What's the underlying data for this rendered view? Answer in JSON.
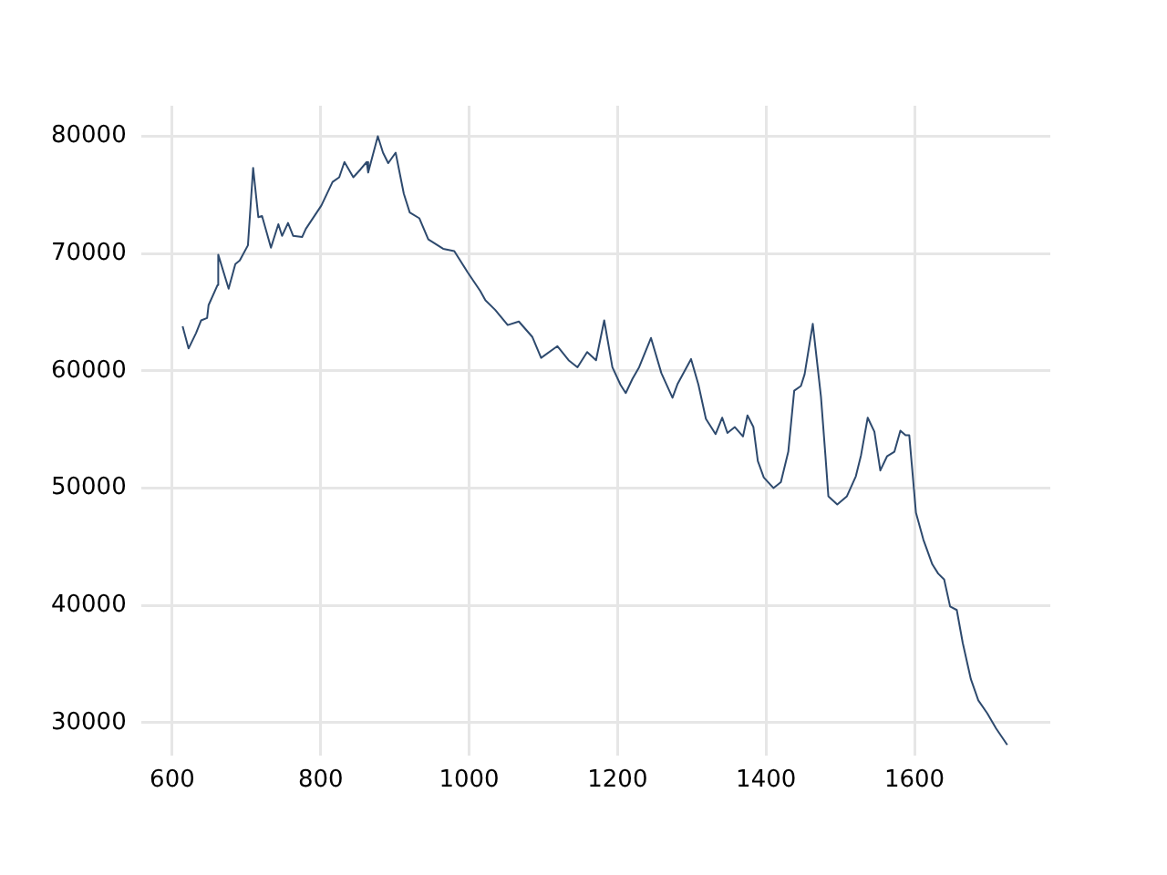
{
  "chart_data": {
    "type": "line",
    "x": [
      614,
      622,
      632,
      639,
      647,
      649,
      661,
      662,
      676,
      685,
      691,
      702,
      709,
      716,
      721,
      733,
      743,
      748,
      756,
      763,
      775,
      780,
      801,
      816,
      825,
      832,
      844,
      854,
      862,
      864,
      877,
      884,
      891,
      901,
      912,
      920,
      933,
      945,
      965,
      980,
      998,
      1015,
      1022,
      1035,
      1052,
      1067,
      1085,
      1097,
      1119,
      1134,
      1146,
      1159,
      1171,
      1182,
      1193,
      1204,
      1211,
      1220,
      1229,
      1245,
      1259,
      1274,
      1281,
      1299,
      1309,
      1319,
      1332,
      1341,
      1348,
      1358,
      1369,
      1375,
      1383,
      1389,
      1397,
      1410,
      1420,
      1430,
      1438,
      1447,
      1452,
      1463,
      1474,
      1480,
      1484,
      1496,
      1509,
      1521,
      1528,
      1537,
      1546,
      1554,
      1563,
      1573,
      1581,
      1588,
      1593,
      1602,
      1612,
      1624,
      1632,
      1640,
      1648,
      1657,
      1665,
      1676,
      1686,
      1698,
      1710,
      1725
    ],
    "series": [
      {
        "color": "#2e4a6e",
        "values": [
          63800,
          61900,
          63200,
          64300,
          64500,
          65600,
          67300,
          69900,
          67000,
          69100,
          69400,
          70700,
          77300,
          73100,
          73200,
          70500,
          72500,
          71500,
          72600,
          71500,
          71400,
          72100,
          74100,
          76100,
          76500,
          77800,
          76500,
          77200,
          77800,
          76900,
          80000,
          78600,
          77700,
          78600,
          75100,
          73500,
          73000,
          71200,
          70400,
          70200,
          68400,
          66800,
          66000,
          65200,
          63900,
          64200,
          62900,
          61100,
          62100,
          60900,
          60300,
          61600,
          60900,
          64300,
          60300,
          58800,
          58100,
          59300,
          60300,
          62800,
          59800,
          57700,
          58900,
          61000,
          58800,
          55900,
          54600,
          56000,
          54700,
          55200,
          54400,
          56200,
          55200,
          52300,
          50900,
          50000,
          50500,
          53100,
          58300,
          58700,
          59700,
          64000,
          57800,
          52800,
          49300,
          48600,
          49300,
          51000,
          52800,
          56000,
          54800,
          51500,
          52700,
          53100,
          54900,
          54500,
          54500,
          47900,
          45600,
          43500,
          42700,
          42200,
          39900,
          39600,
          36800,
          33700,
          31900,
          30800,
          29500,
          28100
        ]
      }
    ],
    "xlim": [
      558,
      1783
    ],
    "ylim": [
      27200,
      82600
    ],
    "xticks": [
      600,
      800,
      1000,
      1200,
      1400,
      1600
    ],
    "yticks": [
      30000,
      40000,
      50000,
      60000,
      70000,
      80000
    ],
    "grid": true,
    "legend": false,
    "marker": "none",
    "line_style": "solid"
  }
}
